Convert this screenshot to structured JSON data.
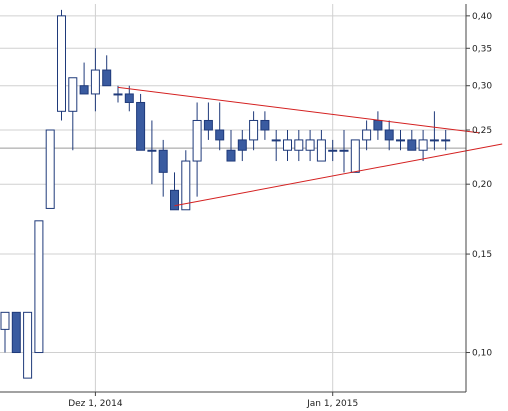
{
  "chart_data": {
    "type": "candlestick",
    "title": "",
    "xlabel": "",
    "ylabel": "",
    "y_scale": "log",
    "ylim": [
      0.085,
      0.42
    ],
    "grid": true,
    "y_ticks": [
      {
        "value": 0.4,
        "label": "0,40"
      },
      {
        "value": 0.35,
        "label": "0,35"
      },
      {
        "value": 0.3,
        "label": "0,30"
      },
      {
        "value": 0.25,
        "label": "0,25"
      },
      {
        "value": 0.2,
        "label": "0,20"
      },
      {
        "value": 0.15,
        "label": "0,15"
      },
      {
        "value": 0.1,
        "label": "0,10"
      }
    ],
    "x_ticks": [
      {
        "index": 8,
        "label": "Dez 1, 2014"
      },
      {
        "index": 29,
        "label": "Jan 1, 2015"
      }
    ],
    "reference_line": 0.232,
    "colors": {
      "up_fill": "#ffffff",
      "down_fill": "#3a5ba0",
      "outline": "#1f3a7a",
      "trendline": "#d42020",
      "grid": "#d0d0d0",
      "axis": "#444444"
    },
    "candles": [
      {
        "open": 0.11,
        "high": 0.118,
        "low": 0.1,
        "close": 0.118
      },
      {
        "open": 0.118,
        "high": 0.118,
        "low": 0.1,
        "close": 0.1
      },
      {
        "open": 0.09,
        "high": 0.118,
        "low": 0.09,
        "close": 0.118
      },
      {
        "open": 0.1,
        "high": 0.172,
        "low": 0.1,
        "close": 0.172
      },
      {
        "open": 0.181,
        "high": 0.25,
        "low": 0.181,
        "close": 0.25
      },
      {
        "open": 0.27,
        "high": 0.41,
        "low": 0.26,
        "close": 0.4
      },
      {
        "open": 0.27,
        "high": 0.31,
        "low": 0.23,
        "close": 0.31
      },
      {
        "open": 0.3,
        "high": 0.33,
        "low": 0.29,
        "close": 0.29
      },
      {
        "open": 0.29,
        "high": 0.35,
        "low": 0.27,
        "close": 0.32
      },
      {
        "open": 0.32,
        "high": 0.34,
        "low": 0.3,
        "close": 0.3
      },
      {
        "open": 0.29,
        "high": 0.3,
        "low": 0.28,
        "close": 0.29
      },
      {
        "open": 0.29,
        "high": 0.3,
        "low": 0.27,
        "close": 0.28
      },
      {
        "open": 0.28,
        "high": 0.29,
        "low": 0.23,
        "close": 0.23
      },
      {
        "open": 0.23,
        "high": 0.26,
        "low": 0.2,
        "close": 0.23
      },
      {
        "open": 0.23,
        "high": 0.24,
        "low": 0.19,
        "close": 0.21
      },
      {
        "open": 0.195,
        "high": 0.21,
        "low": 0.18,
        "close": 0.18
      },
      {
        "open": 0.18,
        "high": 0.23,
        "low": 0.18,
        "close": 0.22
      },
      {
        "open": 0.22,
        "high": 0.28,
        "low": 0.19,
        "close": 0.26
      },
      {
        "open": 0.26,
        "high": 0.28,
        "low": 0.24,
        "close": 0.25
      },
      {
        "open": 0.25,
        "high": 0.28,
        "low": 0.23,
        "close": 0.24
      },
      {
        "open": 0.23,
        "high": 0.25,
        "low": 0.22,
        "close": 0.22
      },
      {
        "open": 0.24,
        "high": 0.25,
        "low": 0.22,
        "close": 0.23
      },
      {
        "open": 0.24,
        "high": 0.27,
        "low": 0.23,
        "close": 0.26
      },
      {
        "open": 0.26,
        "high": 0.27,
        "low": 0.24,
        "close": 0.25
      },
      {
        "open": 0.24,
        "high": 0.25,
        "low": 0.22,
        "close": 0.24
      },
      {
        "open": 0.23,
        "high": 0.25,
        "low": 0.22,
        "close": 0.24
      },
      {
        "open": 0.23,
        "high": 0.25,
        "low": 0.22,
        "close": 0.24
      },
      {
        "open": 0.23,
        "high": 0.25,
        "low": 0.22,
        "close": 0.24
      },
      {
        "open": 0.22,
        "high": 0.25,
        "low": 0.22,
        "close": 0.24
      },
      {
        "open": 0.23,
        "high": 0.24,
        "low": 0.22,
        "close": 0.23
      },
      {
        "open": 0.23,
        "high": 0.25,
        "low": 0.21,
        "close": 0.23
      },
      {
        "open": 0.21,
        "high": 0.24,
        "low": 0.21,
        "close": 0.24
      },
      {
        "open": 0.24,
        "high": 0.26,
        "low": 0.23,
        "close": 0.25
      },
      {
        "open": 0.26,
        "high": 0.27,
        "low": 0.24,
        "close": 0.25
      },
      {
        "open": 0.25,
        "high": 0.26,
        "low": 0.23,
        "close": 0.24
      },
      {
        "open": 0.24,
        "high": 0.25,
        "low": 0.23,
        "close": 0.24
      },
      {
        "open": 0.24,
        "high": 0.25,
        "low": 0.23,
        "close": 0.23
      },
      {
        "open": 0.23,
        "high": 0.25,
        "low": 0.22,
        "close": 0.24
      },
      {
        "open": 0.24,
        "high": 0.27,
        "low": 0.23,
        "close": 0.24
      },
      {
        "open": 0.24,
        "high": 0.25,
        "low": 0.23,
        "close": 0.24
      }
    ],
    "trendlines": [
      {
        "from_index": 10,
        "from_value": 0.298,
        "to_index": 42,
        "to_value": 0.247
      },
      {
        "from_index": 15,
        "from_value": 0.183,
        "to_index": 44,
        "to_value": 0.236
      }
    ]
  }
}
